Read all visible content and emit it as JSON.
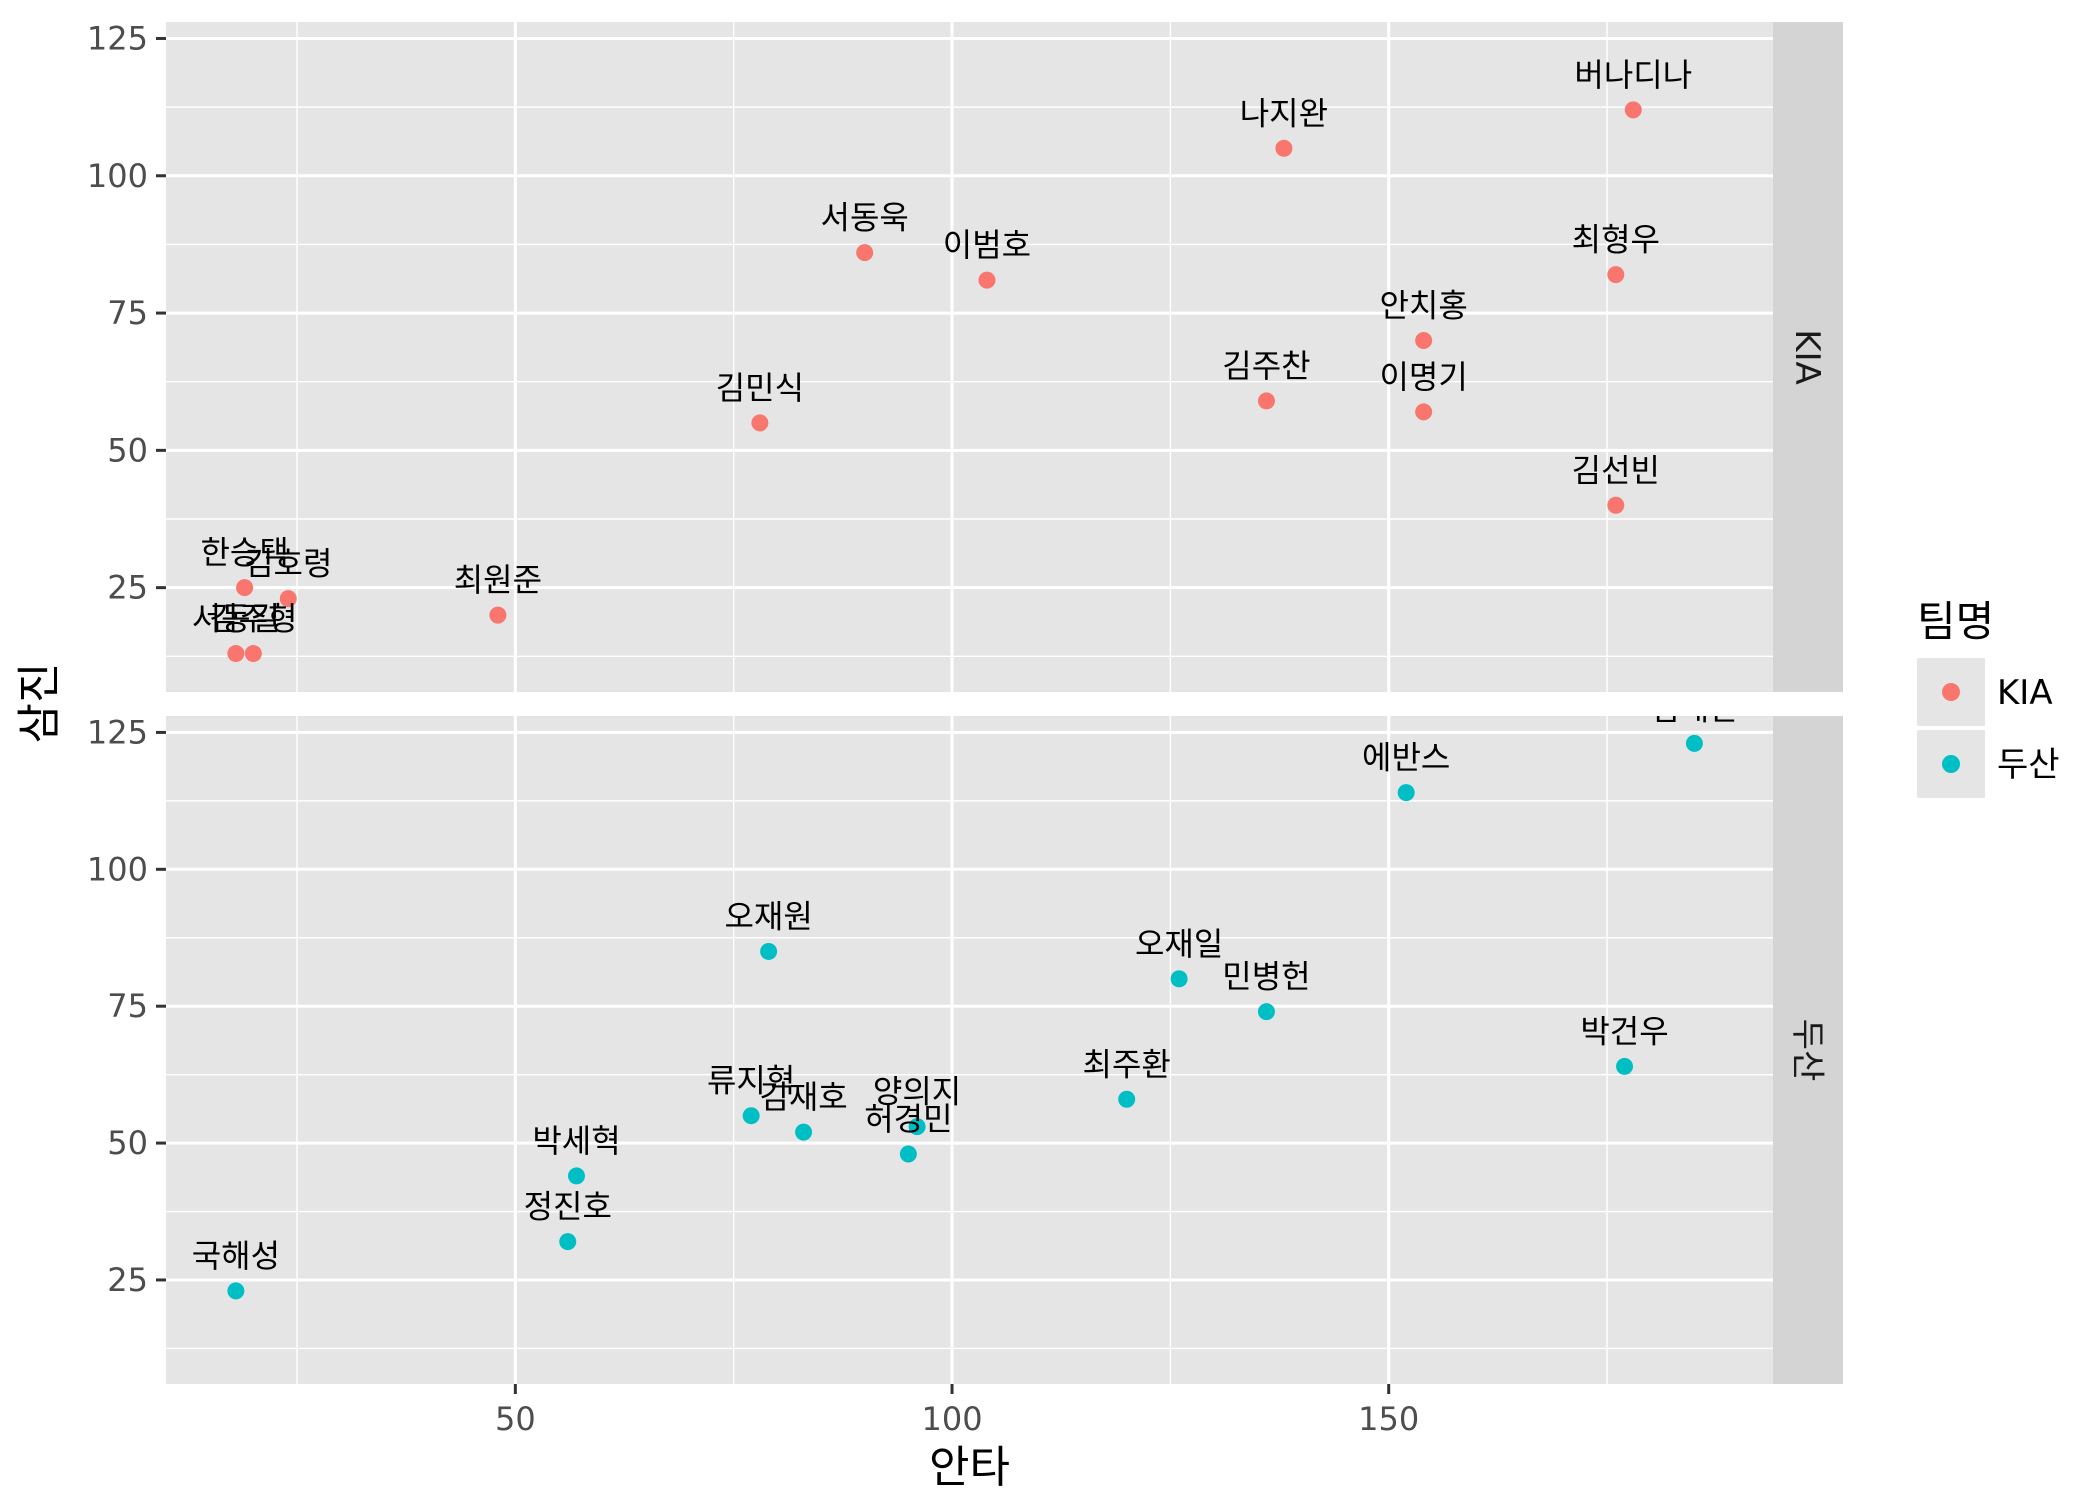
{
  "chart_data": {
    "type": "scatter",
    "xlabel": "안타",
    "ylabel": "삼진",
    "xlim": [
      10,
      194
    ],
    "ylim": [
      6,
      128
    ],
    "x_ticks": [
      50,
      100,
      150
    ],
    "y_ticks": [
      25,
      50,
      75,
      100,
      125
    ],
    "legend": {
      "title": "팀명",
      "position": "right",
      "entries": [
        {
          "name": "KIA",
          "color": "#F8766D"
        },
        {
          "name": "두산",
          "color": "#00BFC4"
        }
      ]
    },
    "facets": [
      {
        "name": "KIA",
        "color": "#F8766D",
        "points": [
          {
            "label": "버나디나",
            "x": 178,
            "y": 112
          },
          {
            "label": "나지완",
            "x": 138,
            "y": 105
          },
          {
            "label": "서동욱",
            "x": 90,
            "y": 86
          },
          {
            "label": "이범호",
            "x": 104,
            "y": 81
          },
          {
            "label": "최형우",
            "x": 176,
            "y": 82
          },
          {
            "label": "안치홍",
            "x": 154,
            "y": 70
          },
          {
            "label": "김주찬",
            "x": 136,
            "y": 59
          },
          {
            "label": "이명기",
            "x": 154,
            "y": 57
          },
          {
            "label": "김민식",
            "x": 78,
            "y": 55
          },
          {
            "label": "김선빈",
            "x": 176,
            "y": 40
          },
          {
            "label": "한승택",
            "x": 19,
            "y": 25
          },
          {
            "label": "김호령",
            "x": 24,
            "y": 23
          },
          {
            "label": "최원준",
            "x": 48,
            "y": 20
          },
          {
            "label": "서동길",
            "x": 18,
            "y": 13
          },
          {
            "label": "김주형",
            "x": 20,
            "y": 13
          }
        ]
      },
      {
        "name": "두산",
        "color": "#00BFC4",
        "points": [
          {
            "label": "김재환",
            "x": 185,
            "y": 123
          },
          {
            "label": "에반스",
            "x": 152,
            "y": 114
          },
          {
            "label": "오재원",
            "x": 79,
            "y": 85
          },
          {
            "label": "오재일",
            "x": 126,
            "y": 80
          },
          {
            "label": "민병헌",
            "x": 136,
            "y": 74
          },
          {
            "label": "박건우",
            "x": 177,
            "y": 64
          },
          {
            "label": "최주환",
            "x": 120,
            "y": 58
          },
          {
            "label": "류지혁",
            "x": 77,
            "y": 55
          },
          {
            "label": "양의지",
            "x": 96,
            "y": 53
          },
          {
            "label": "김재호",
            "x": 83,
            "y": 52
          },
          {
            "label": "허경민",
            "x": 95,
            "y": 48
          },
          {
            "label": "박세혁",
            "x": 57,
            "y": 44
          },
          {
            "label": "정진호",
            "x": 56,
            "y": 32
          },
          {
            "label": "국해성",
            "x": 18,
            "y": 23
          }
        ]
      }
    ]
  }
}
